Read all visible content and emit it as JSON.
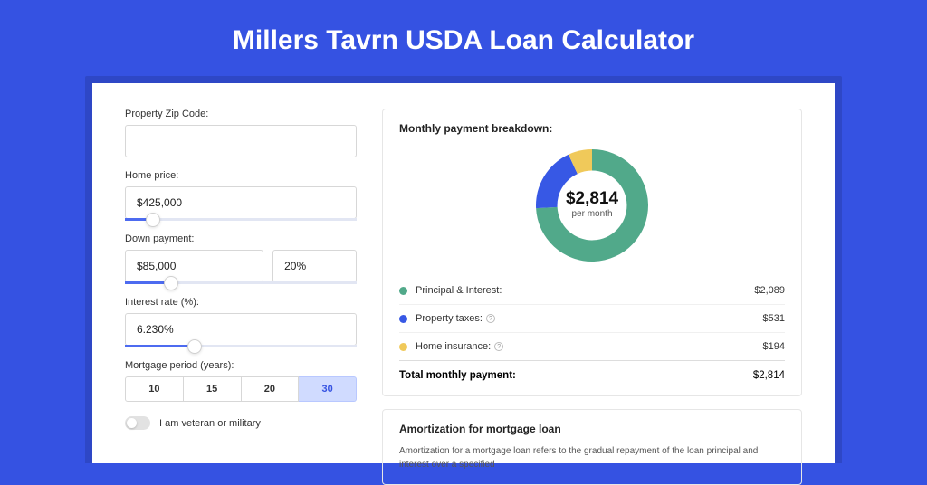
{
  "page": {
    "title": "Millers Tavrn USDA Loan Calculator",
    "bg_color": "#3552e2",
    "shadow_color": "#2e47c6"
  },
  "form": {
    "zip": {
      "label": "Property Zip Code:",
      "value": ""
    },
    "home_price": {
      "label": "Home price:",
      "value": "$425,000",
      "slider_pct": 12
    },
    "down_payment": {
      "label": "Down payment:",
      "amount": "$85,000",
      "percent": "20%",
      "slider_pct": 20
    },
    "interest": {
      "label": "Interest rate (%):",
      "value": "6.230%",
      "slider_pct": 30
    },
    "period": {
      "label": "Mortgage period (years):",
      "options": [
        "10",
        "15",
        "20",
        "30"
      ],
      "active_index": 3
    },
    "veteran": {
      "label": "I am veteran or military",
      "on": false
    }
  },
  "breakdown": {
    "title": "Monthly payment breakdown:",
    "center_amount": "$2,814",
    "center_sub": "per month",
    "donut": {
      "segments": [
        {
          "color": "#51a98a",
          "pct": 74.2
        },
        {
          "color": "#3758e5",
          "pct": 18.9
        },
        {
          "color": "#f0c95a",
          "pct": 6.9
        }
      ],
      "inner_ratio": 0.62,
      "size": 124
    },
    "rows": [
      {
        "color": "#51a98a",
        "label": "Principal & Interest:",
        "value": "$2,089",
        "info": false
      },
      {
        "color": "#3758e5",
        "label": "Property taxes:",
        "value": "$531",
        "info": true
      },
      {
        "color": "#f0c95a",
        "label": "Home insurance:",
        "value": "$194",
        "info": true
      }
    ],
    "total": {
      "label": "Total monthly payment:",
      "value": "$2,814"
    }
  },
  "amortization": {
    "title": "Amortization for mortgage loan",
    "text": "Amortization for a mortgage loan refers to the gradual repayment of the loan principal and interest over a specified"
  }
}
